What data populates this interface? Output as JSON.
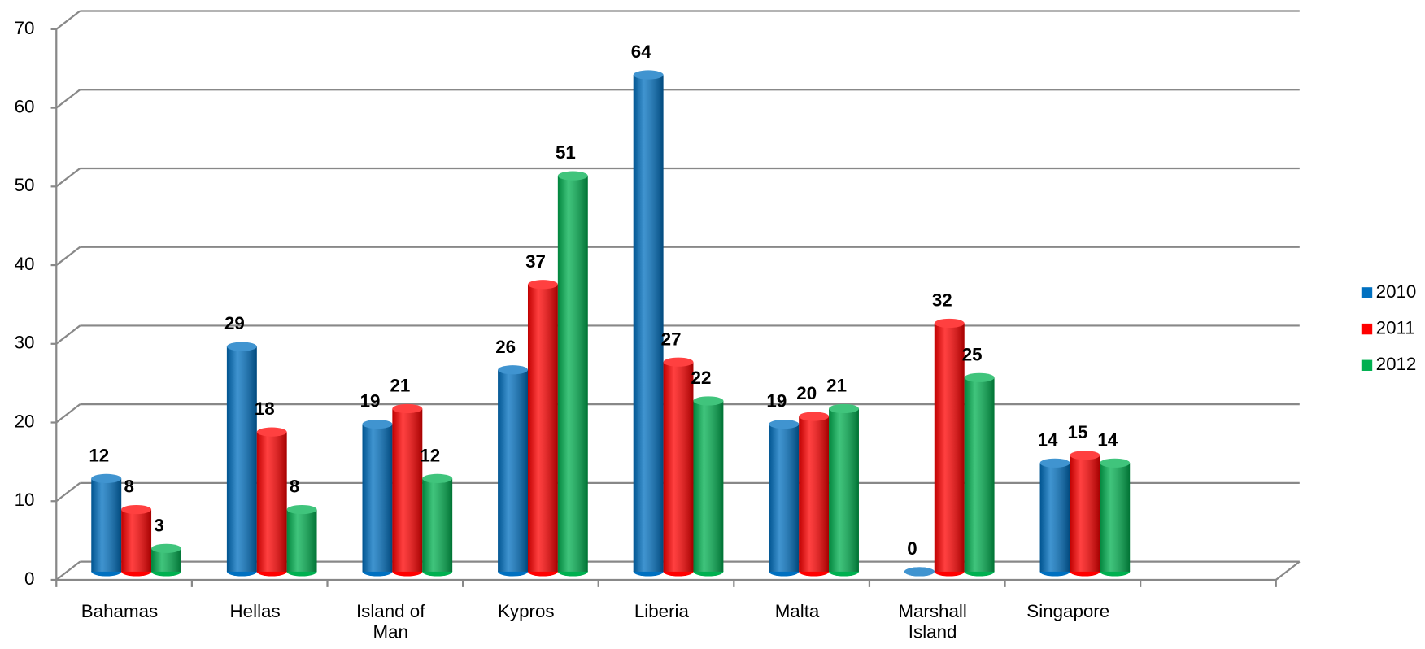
{
  "chart_data": {
    "type": "bar",
    "style": "3d-cylinder",
    "categories": [
      "Bahamas",
      "Hellas",
      "Island of Man",
      "Kypros",
      "Liberia",
      "Malta",
      "Marshall Island",
      "Singapore",
      null
    ],
    "series": [
      {
        "name": "2010",
        "color": "#0070c0",
        "values": [
          12,
          29,
          19,
          26,
          64,
          19,
          0,
          14,
          null
        ]
      },
      {
        "name": "2011",
        "color": "#ff0000",
        "values": [
          8,
          18,
          21,
          37,
          27,
          20,
          32,
          15,
          null
        ]
      },
      {
        "name": "2012",
        "color": "#00b050",
        "values": [
          3,
          8,
          12,
          51,
          22,
          21,
          25,
          14,
          null
        ]
      }
    ],
    "ylim": [
      0,
      70
    ],
    "yticks": [
      0,
      10,
      20,
      30,
      40,
      50,
      60,
      70
    ],
    "grid": true,
    "legend": "right"
  }
}
